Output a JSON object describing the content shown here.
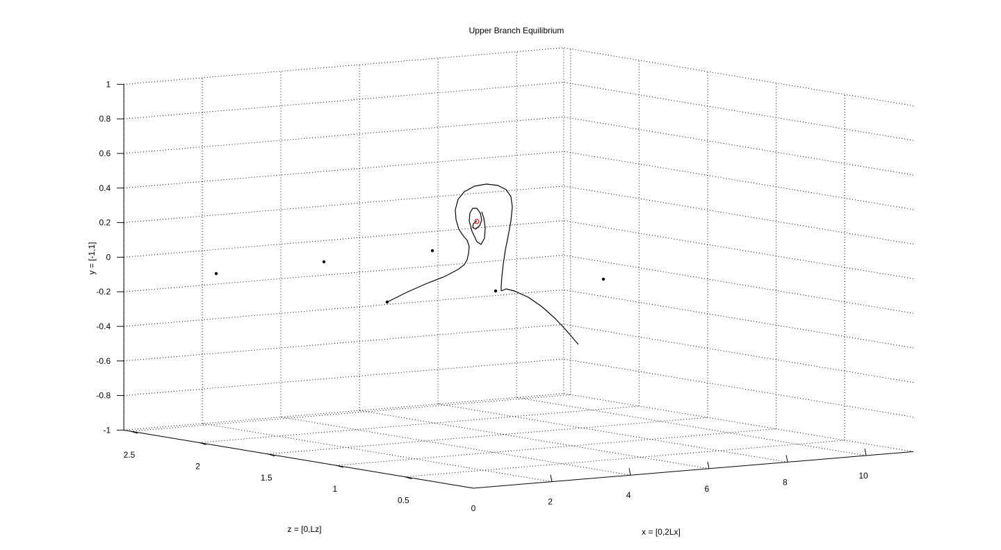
{
  "chart_data": {
    "type": "line3d",
    "title": "Upper Branch Equilibrium",
    "xlabel": "x = [0,2Lx]",
    "ylabel": "y = [-1,1]",
    "zlabel": "z = [0,Lz]",
    "xlim": [
      0,
      11.2
    ],
    "ylim": [
      -1,
      1
    ],
    "zlim": [
      0,
      2.55
    ],
    "x_ticks": [
      "0",
      "2",
      "4",
      "6",
      "8",
      "10"
    ],
    "y_ticks": [
      "-1",
      "-0.8",
      "-0.6",
      "-0.4",
      "-0.2",
      "0",
      "0.2",
      "0.4",
      "0.6",
      "0.8",
      "1"
    ],
    "z_ticks": [
      "0.5",
      "1",
      "1.5",
      "2",
      "2.5"
    ],
    "grid": true,
    "equilibrium_point": {
      "color": "#ff0000"
    },
    "trajectory_color": "#000000"
  }
}
